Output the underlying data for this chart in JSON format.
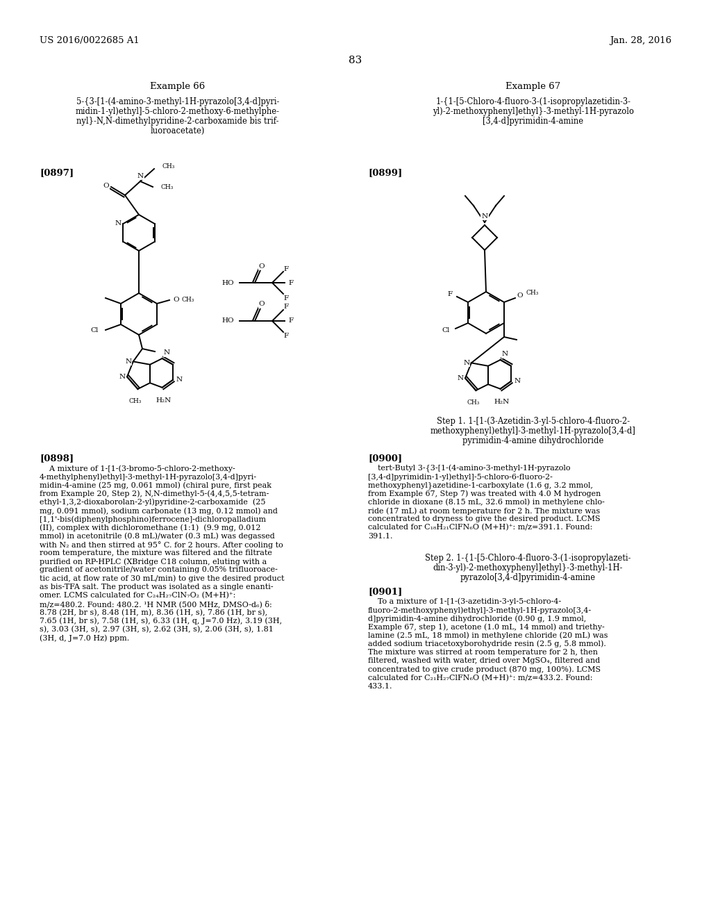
{
  "bg_color": "#ffffff",
  "header_left": "US 2016/0022685 A1",
  "header_right": "Jan. 28, 2016",
  "page_number": "83",
  "example66_title": "Example 66",
  "example66_compound_lines": [
    "5-{3-[1-(4-amino-3-methyl-1H-pyrazolo[3,4-d]pyri-",
    "midin-1-yl)ethyl]-5-chloro-2-methoxy-6-methylphe-",
    "nyl}-N,N-dimethylpyridine-2-carboxamide bis trif-",
    "luoroacetate)"
  ],
  "example67_title": "Example 67",
  "example67_compound_lines": [
    "1-{1-[5-Chloro-4-fluoro-3-(1-isopropylazetidin-3-",
    "yl)-2-methoxyphenyl]ethyl}-3-methyl-1H-pyrazolo",
    "[3,4-d]pyrimidin-4-amine"
  ],
  "ref0897": "[0897]",
  "ref0899": "[0899]",
  "step1_title_lines": [
    "Step 1. 1-[1-(3-Azetidin-3-yl-5-chloro-4-fluoro-2-",
    "methoxyphenyl)ethyl]-3-methyl-1H-pyrazolo[3,4-d]",
    "pyrimidin-4-amine dihydrochloride"
  ],
  "ref0900": "[0900]",
  "text0900_lines": [
    "    tert-Butyl 3-{3-[1-(4-amino-3-methyl-1H-pyrazolo",
    "[3,4-d]pyrimidin-1-yl)ethyl]-5-chloro-6-fluoro-2-",
    "methoxyphenyl}azetidine-1-carboxylate (1.6 g, 3.2 mmol,",
    "from Example 67, Step 7) was treated with 4.0 M hydrogen",
    "chloride in dioxane (8.15 mL, 32.6 mmol) in methylene chlo-",
    "ride (17 mL) at room temperature for 2 h. The mixture was",
    "concentrated to dryness to give the desired product. LCMS",
    "calculated for C₁₈H₂₁ClFN₆O (M+H)⁺: m/z=391.1. Found:",
    "391.1."
  ],
  "step2_title_lines": [
    "Step 2. 1-{1-[5-Chloro-4-fluoro-3-(1-isopropylazeti-",
    "din-3-yl)-2-methoxyphenyl]ethyl}-3-methyl-1H-",
    "pyrazolo[3,4-d]pyrimidin-4-amine"
  ],
  "ref0901": "[0901]",
  "text0901_lines": [
    "    To a mixture of 1-[1-(3-azetidin-3-yl-5-chloro-4-",
    "fluoro-2-methoxyphenyl)ethyl]-3-methyl-1H-pyrazolo[3,4-",
    "d]pyrimidin-4-amine dihydrochloride (0.90 g, 1.9 mmol,",
    "Example 67, step 1), acetone (1.0 mL, 14 mmol) and triethy-",
    "lamine (2.5 mL, 18 mmol) in methylene chloride (20 mL) was",
    "added sodium triacetoxyborohydride resin (2.5 g, 5.8 mmol).",
    "The mixture was stirred at room temperature for 2 h, then",
    "filtered, washed with water, dried over MgSO₄, filtered and",
    "concentrated to give crude product (870 mg, 100%). LCMS",
    "calculated for C₂₁H₂₇ClFN₆O (M+H)⁺: m/z=433.2. Found:",
    "433.1."
  ],
  "ref0898": "[0898]",
  "text0898_lines": [
    "    A mixture of 1-[1-(3-bromo-5-chloro-2-methoxy-",
    "4-methylphenyl)ethyl]-3-methyl-1H-pyrazolo[3,4-d]pyri-",
    "midin-4-amine (25 mg, 0.061 mmol) (chiral pure, first peak",
    "from Example 20, Step 2), N,N-dimethyl-5-(4,4,5,5-tetram-",
    "ethyl-1,3,2-dioxaborolan-2-yl)pyridine-2-carboxamide  (25",
    "mg, 0.091 mmol), sodium carbonate (13 mg, 0.12 mmol) and",
    "[1,1'-bis(diphenylphosphino)ferrocene]-dichloropalladium",
    "(II), complex with dichloromethane (1:1)  (9.9 mg, 0.012",
    "mmol) in acetonitrile (0.8 mL)/water (0.3 mL) was degassed",
    "with N₂ and then stirred at 95° C. for 2 hours. After cooling to",
    "room temperature, the mixture was filtered and the filtrate",
    "purified on RP-HPLC (XBridge C18 column, eluting with a",
    "gradient of acetonitrile/water containing 0.05% trifluoroace-",
    "tic acid, at flow rate of 30 mL/min) to give the desired product",
    "as bis-TFA salt. The product was isolated as a single enanti-",
    "omer. LCMS calculated for C₂₄H₂₇ClN₇O₂ (M+H)⁺:",
    "m/z=480.2. Found: 480.2. ¹H NMR (500 MHz, DMSO-d₆) δ:",
    "8.78 (2H, br s), 8.48 (1H, m), 8.36 (1H, s), 7.86 (1H, br s),",
    "7.65 (1H, br s), 7.58 (1H, s), 6.33 (1H, q, J=7.0 Hz), 3.19 (3H,",
    "s), 3.03 (3H, s), 2.97 (3H, s), 2.62 (3H, s), 2.06 (3H, s), 1.81",
    "(3H, d, J=7.0 Hz) ppm."
  ]
}
